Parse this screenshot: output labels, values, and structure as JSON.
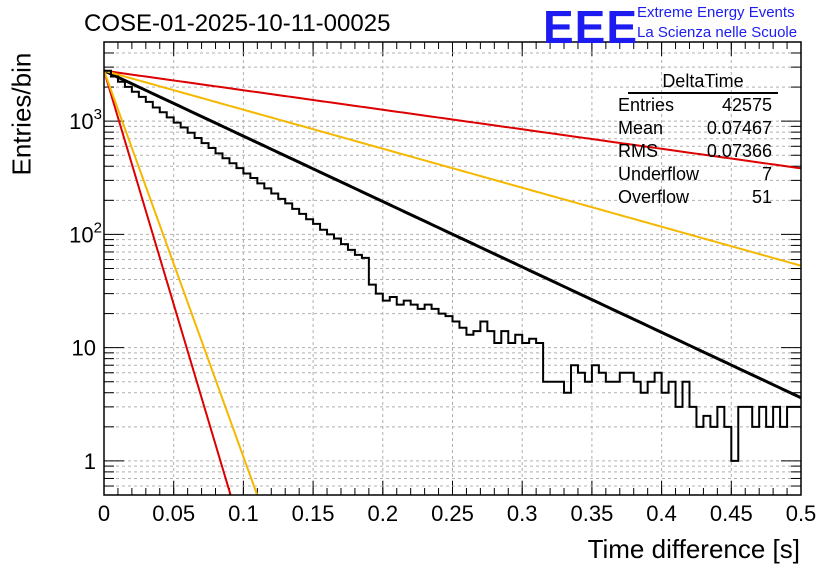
{
  "chart_data": {
    "type": "histogram",
    "title": "COSE-01-2025-10-11-00025",
    "xlabel": "Time difference [s]",
    "ylabel": "Entries/bin",
    "xlim": [
      0,
      0.5
    ],
    "ylim": [
      0.5,
      5000
    ],
    "yscale": "log",
    "x_ticks": [
      "0",
      "0.05",
      "0.1",
      "0.15",
      "0.2",
      "0.25",
      "0.3",
      "0.35",
      "0.4",
      "0.45",
      "0.5"
    ],
    "x_tick_values": [
      0,
      0.05,
      0.1,
      0.15,
      0.2,
      0.25,
      0.3,
      0.35,
      0.4,
      0.45,
      0.5
    ],
    "y_ticks": [
      {
        "value": 1,
        "base": "1",
        "exp": ""
      },
      {
        "value": 10,
        "base": "10",
        "exp": ""
      },
      {
        "value": 100,
        "base": "10",
        "exp": "2"
      },
      {
        "value": 1000,
        "base": "10",
        "exp": "3"
      }
    ],
    "bin_width": 0.005,
    "histogram_series": {
      "name": "DeltaTime",
      "color": "#000000",
      "bin_start": 0,
      "counts": [
        2790,
        2480,
        2230,
        2010,
        1820,
        1640,
        1480,
        1320,
        1200,
        1080,
        970,
        880,
        790,
        710,
        640,
        580,
        520,
        470,
        425,
        385,
        345,
        315,
        282,
        255,
        230,
        206,
        188,
        168,
        152,
        136,
        124,
        110,
        100,
        92,
        82,
        73,
        66,
        62,
        54,
        52,
        44,
        40,
        37,
        34,
        30,
        27,
        24,
        22,
        20,
        19,
        17,
        15,
        13,
        13,
        11,
        10,
        10,
        8,
        7,
        8,
        7,
        7,
        6,
        5,
        5,
        5,
        4,
        4,
        4,
        4,
        7,
        7,
        7,
        7,
        6,
        6,
        6,
        6,
        5,
        5,
        4,
        4,
        5,
        5,
        4,
        4,
        3,
        3,
        3,
        3,
        3,
        3,
        2,
        1,
        2,
        2,
        2,
        3,
        3,
        3
      ],
      "stepped_overrides": [
        [
          0.19,
          0.195,
          36
        ],
        [
          0.195,
          0.2,
          30
        ],
        [
          0.2,
          0.205,
          26
        ],
        [
          0.205,
          0.21,
          28
        ],
        [
          0.21,
          0.215,
          24
        ],
        [
          0.215,
          0.22,
          26
        ],
        [
          0.22,
          0.225,
          24
        ],
        [
          0.225,
          0.23,
          22
        ],
        [
          0.265,
          0.27,
          14
        ],
        [
          0.27,
          0.275,
          17
        ],
        [
          0.275,
          0.28,
          14
        ],
        [
          0.28,
          0.285,
          11
        ],
        [
          0.285,
          0.29,
          14
        ],
        [
          0.29,
          0.295,
          11
        ],
        [
          0.295,
          0.3,
          13
        ],
        [
          0.3,
          0.305,
          11
        ],
        [
          0.305,
          0.31,
          12
        ],
        [
          0.31,
          0.315,
          11
        ],
        [
          0.335,
          0.34,
          7
        ],
        [
          0.34,
          0.345,
          6
        ],
        [
          0.345,
          0.35,
          5
        ],
        [
          0.35,
          0.355,
          7
        ],
        [
          0.355,
          0.36,
          6
        ],
        [
          0.36,
          0.365,
          5
        ],
        [
          0.365,
          0.37,
          5
        ],
        [
          0.37,
          0.375,
          6
        ],
        [
          0.375,
          0.38,
          6
        ],
        [
          0.38,
          0.385,
          5
        ],
        [
          0.385,
          0.39,
          4
        ],
        [
          0.39,
          0.395,
          5
        ],
        [
          0.395,
          0.4,
          6
        ],
        [
          0.4,
          0.405,
          4
        ],
        [
          0.405,
          0.41,
          5
        ],
        [
          0.41,
          0.415,
          3
        ],
        [
          0.415,
          0.42,
          5
        ],
        [
          0.42,
          0.425,
          3
        ],
        [
          0.425,
          0.43,
          2
        ],
        [
          0.43,
          0.435,
          2.5
        ],
        [
          0.435,
          0.44,
          2
        ],
        [
          0.44,
          0.445,
          3
        ],
        [
          0.445,
          0.45,
          2
        ],
        [
          0.45,
          0.455,
          1
        ],
        [
          0.455,
          0.46,
          3
        ],
        [
          0.46,
          0.465,
          3
        ],
        [
          0.465,
          0.47,
          2
        ],
        [
          0.47,
          0.475,
          3
        ],
        [
          0.475,
          0.48,
          2
        ],
        [
          0.48,
          0.485,
          3
        ],
        [
          0.485,
          0.49,
          2
        ],
        [
          0.49,
          0.495,
          3
        ],
        [
          0.495,
          0.5,
          3
        ]
      ]
    },
    "fit_lines": [
      {
        "name": "fit",
        "color": "#000000",
        "y0": 2790,
        "slope_per_s": -13.3,
        "width": 3
      },
      {
        "name": "upper-slow",
        "color": "#dd0000",
        "y0": 2790,
        "slope_per_s": -3.97,
        "width": 2
      },
      {
        "name": "mid-slow",
        "color": "#f5b800",
        "y0": 2790,
        "slope_per_s": -7.93,
        "width": 2
      },
      {
        "name": "upper-fast",
        "color": "#dd0000",
        "y0": 2790,
        "slope_per_s": -95.0,
        "width": 2
      },
      {
        "name": "mid-fast",
        "color": "#f5b800",
        "y0": 2790,
        "slope_per_s": -78.5,
        "width": 2
      }
    ]
  },
  "logo": {
    "text": "EEE",
    "line1": "Extreme Energy Events",
    "line2": "La Scienza nelle Scuole"
  },
  "stats_box": {
    "title": "DeltaTime",
    "rows": [
      {
        "key": "Entries",
        "value": "42575"
      },
      {
        "key": "Mean",
        "value": "0.07467"
      },
      {
        "key": "RMS",
        "value": "0.07366"
      },
      {
        "key": "Underflow",
        "value": "7"
      },
      {
        "key": "Overflow",
        "value": "51"
      }
    ]
  }
}
